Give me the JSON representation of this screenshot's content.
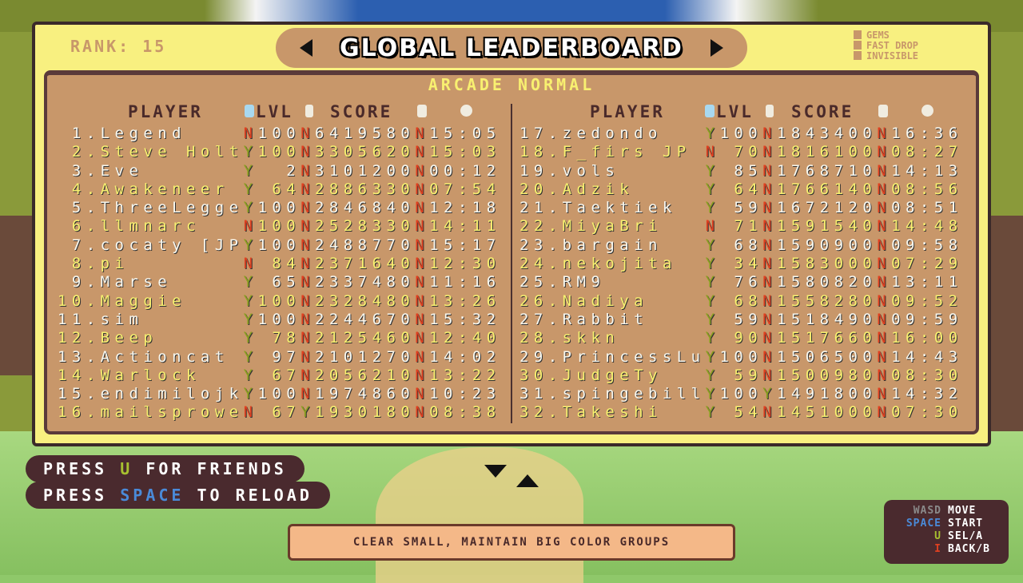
{
  "header": {
    "rank": "RANK: 15",
    "title": "GLOBAL LEADERBOARD",
    "mode": "ARCADE NORMAL"
  },
  "legend": [
    {
      "icon": "gem-icon",
      "label": "GEMS"
    },
    {
      "icon": "fast-drop-icon",
      "label": "FAST DROP"
    },
    {
      "icon": "ghost-icon",
      "label": "INVISIBLE"
    }
  ],
  "columns": {
    "player": "PLAYER",
    "level": "LVL",
    "score": "SCORE"
  },
  "colors": {
    "white_row": "#f8f8f0",
    "yellow_row": "#f8f070",
    "flag_yes": "#8aa020",
    "flag_no": "#e04020",
    "panel": "#c8976a",
    "frame": "#f8f080"
  },
  "left_rows": [
    {
      "rank": "1",
      "name": "Legend",
      "gems": "N",
      "lvl": "100",
      "fast": "N",
      "score": "6419580",
      "inv": "N",
      "time": "15:05"
    },
    {
      "rank": "2",
      "name": "Steve Holt",
      "gems": "Y",
      "lvl": "100",
      "fast": "N",
      "score": "3305620",
      "inv": "N",
      "time": "15:03"
    },
    {
      "rank": "3",
      "name": "Eve",
      "gems": "Y",
      "lvl": "2",
      "fast": "N",
      "score": "3101200",
      "inv": "N",
      "time": "00:12"
    },
    {
      "rank": "4",
      "name": "Awakeneer",
      "gems": "Y",
      "lvl": "64",
      "fast": "N",
      "score": "2886330",
      "inv": "N",
      "time": "07:54"
    },
    {
      "rank": "5",
      "name": "ThreeLegge",
      "gems": "Y",
      "lvl": "100",
      "fast": "N",
      "score": "2846840",
      "inv": "N",
      "time": "12:18"
    },
    {
      "rank": "6",
      "name": "llmnarc",
      "gems": "N",
      "lvl": "100",
      "fast": "N",
      "score": "2528330",
      "inv": "N",
      "time": "14:11"
    },
    {
      "rank": "7",
      "name": "cocaty [JP",
      "gems": "Y",
      "lvl": "100",
      "fast": "N",
      "score": "2488770",
      "inv": "N",
      "time": "15:17"
    },
    {
      "rank": "8",
      "name": "pi",
      "gems": "N",
      "lvl": "84",
      "fast": "N",
      "score": "2371640",
      "inv": "N",
      "time": "12:30"
    },
    {
      "rank": "9",
      "name": "Marse",
      "gems": "Y",
      "lvl": "65",
      "fast": "N",
      "score": "2337480",
      "inv": "N",
      "time": "11:16"
    },
    {
      "rank": "10",
      "name": "Maggie",
      "gems": "Y",
      "lvl": "100",
      "fast": "N",
      "score": "2328480",
      "inv": "N",
      "time": "13:26"
    },
    {
      "rank": "11",
      "name": "sim",
      "gems": "Y",
      "lvl": "100",
      "fast": "N",
      "score": "2244670",
      "inv": "N",
      "time": "15:32"
    },
    {
      "rank": "12",
      "name": "Beep",
      "gems": "Y",
      "lvl": "78",
      "fast": "N",
      "score": "2125460",
      "inv": "N",
      "time": "12:40"
    },
    {
      "rank": "13",
      "name": "Actioncat",
      "gems": "Y",
      "lvl": "97",
      "fast": "N",
      "score": "2101270",
      "inv": "N",
      "time": "14:02"
    },
    {
      "rank": "14",
      "name": "Warlock",
      "gems": "Y",
      "lvl": "67",
      "fast": "N",
      "score": "2056210",
      "inv": "N",
      "time": "13:22"
    },
    {
      "rank": "15",
      "name": "endimilojk",
      "gems": "Y",
      "lvl": "100",
      "fast": "N",
      "score": "1974860",
      "inv": "N",
      "time": "10:23"
    },
    {
      "rank": "16",
      "name": "mailsprowe",
      "gems": "N",
      "lvl": "67",
      "fast": "Y",
      "score": "1930180",
      "inv": "N",
      "time": "08:38"
    }
  ],
  "right_rows": [
    {
      "rank": "17",
      "name": "zedondo",
      "gems": "Y",
      "lvl": "100",
      "fast": "N",
      "score": "1843400",
      "inv": "N",
      "time": "16:36"
    },
    {
      "rank": "18",
      "name": "F_firs JP",
      "gems": "N",
      "lvl": "70",
      "fast": "N",
      "score": "1816100",
      "inv": "N",
      "time": "08:27"
    },
    {
      "rank": "19",
      "name": "vols",
      "gems": "Y",
      "lvl": "85",
      "fast": "N",
      "score": "1768710",
      "inv": "N",
      "time": "14:13"
    },
    {
      "rank": "20",
      "name": "Adzik",
      "gems": "Y",
      "lvl": "64",
      "fast": "N",
      "score": "1766140",
      "inv": "N",
      "time": "08:56"
    },
    {
      "rank": "21",
      "name": "Taektiek",
      "gems": "Y",
      "lvl": "59",
      "fast": "N",
      "score": "1672120",
      "inv": "N",
      "time": "08:51"
    },
    {
      "rank": "22",
      "name": "MiyaBri",
      "gems": "N",
      "lvl": "71",
      "fast": "N",
      "score": "1591540",
      "inv": "N",
      "time": "14:48"
    },
    {
      "rank": "23",
      "name": "bargain",
      "gems": "Y",
      "lvl": "68",
      "fast": "N",
      "score": "1590900",
      "inv": "N",
      "time": "09:58"
    },
    {
      "rank": "24",
      "name": "nekojita",
      "gems": "Y",
      "lvl": "34",
      "fast": "N",
      "score": "1583000",
      "inv": "N",
      "time": "07:29"
    },
    {
      "rank": "25",
      "name": "RM9",
      "gems": "Y",
      "lvl": "76",
      "fast": "N",
      "score": "1580820",
      "inv": "N",
      "time": "13:11"
    },
    {
      "rank": "26",
      "name": "Nadiya",
      "gems": "Y",
      "lvl": "68",
      "fast": "N",
      "score": "1558280",
      "inv": "N",
      "time": "09:52"
    },
    {
      "rank": "27",
      "name": "Rabbit",
      "gems": "Y",
      "lvl": "59",
      "fast": "N",
      "score": "1518490",
      "inv": "N",
      "time": "09:59"
    },
    {
      "rank": "28",
      "name": "skkn",
      "gems": "Y",
      "lvl": "90",
      "fast": "N",
      "score": "1517660",
      "inv": "N",
      "time": "16:00"
    },
    {
      "rank": "29",
      "name": "PrincessLu",
      "gems": "Y",
      "lvl": "100",
      "fast": "N",
      "score": "1506500",
      "inv": "N",
      "time": "14:43"
    },
    {
      "rank": "30",
      "name": "JudgeTy",
      "gems": "Y",
      "lvl": "59",
      "fast": "N",
      "score": "1500980",
      "inv": "N",
      "time": "08:30"
    },
    {
      "rank": "31",
      "name": "spingebill",
      "gems": "Y",
      "lvl": "100",
      "fast": "Y",
      "score": "1491800",
      "inv": "N",
      "time": "14:32"
    },
    {
      "rank": "32",
      "name": "Takeshi",
      "gems": "Y",
      "lvl": "54",
      "fast": "N",
      "score": "1451000",
      "inv": "N",
      "time": "07:30"
    }
  ],
  "prompts": {
    "friends": {
      "pre": "PRESS ",
      "key": "U",
      "post": " FOR FRIENDS"
    },
    "reload": {
      "pre": "PRESS ",
      "key": "SPACE",
      "post": " TO RELOAD"
    }
  },
  "controls": [
    {
      "key": "WASD",
      "action": "MOVE",
      "color": "#8a8a8a"
    },
    {
      "key": "SPACE",
      "action": "START",
      "color": "#4a8ad8"
    },
    {
      "key": "U",
      "action": "SEL/A",
      "color": "#a8c030"
    },
    {
      "key": "I",
      "action": "BACK/B",
      "color": "#e04020"
    }
  ],
  "hint": "CLEAR SMALL, MAINTAIN BIG COLOR GROUPS"
}
